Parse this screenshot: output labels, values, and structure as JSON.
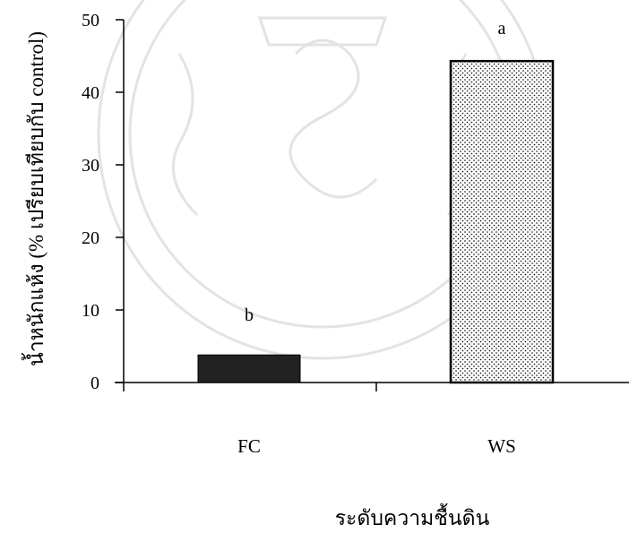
{
  "chart_data": {
    "type": "bar",
    "categories": [
      "FC",
      "WS"
    ],
    "values": [
      3.8,
      44.3
    ],
    "bar_letters": [
      "b",
      "a"
    ],
    "bar_fills": [
      "#222222",
      "dotted"
    ],
    "xlabel": "ระดับความชื้นดิน",
    "ylabel": "น้ำหนักแห้ง (% เปรียบเทียบกับ control)",
    "ylim": [
      0,
      50
    ],
    "yticks": [
      "0",
      "10",
      "20",
      "30",
      "40",
      "50"
    ],
    "grid": false,
    "legend": "none"
  }
}
